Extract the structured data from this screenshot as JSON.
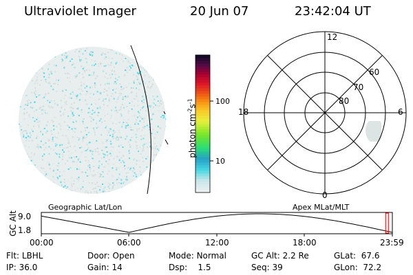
{
  "header": {
    "instrument": "Ultraviolet Imager",
    "date": "20 Jun 07",
    "time": "23:42:04 UT"
  },
  "colorbar": {
    "unit_label": "photon cm",
    "unit_exp1": "-2",
    "unit_s": "s",
    "unit_exp2": "-1",
    "ticks": [
      "100",
      "10"
    ]
  },
  "polar_plot": {
    "mlt_labels": {
      "top": "12",
      "left": "18",
      "right": "6",
      "bottom": "0"
    },
    "lat_labels": [
      "60",
      "70",
      "80"
    ]
  },
  "panel_labels": {
    "left": "Geographic Lat/Lon",
    "right": "Apex  MLat/MLT"
  },
  "altitude_plot": {
    "ylabel": "GC Alt",
    "ymax_label": "9.0",
    "ymin_label": "1.8",
    "xticks": [
      "00:00",
      "06:00",
      "12:00",
      "18:00",
      "23:59"
    ],
    "current_fraction": 0.985
  },
  "status": {
    "row1": [
      {
        "key": "Flt:",
        "value": "LBHL"
      },
      {
        "key": "Door:",
        "value": "Open"
      },
      {
        "key": "Mode:",
        "value": "Normal"
      },
      {
        "key": "GC Alt:",
        "value": "2.2 Re"
      },
      {
        "key": "GLat:",
        "value": "67.6"
      }
    ],
    "row2": [
      {
        "key": "IP:",
        "value": "36.0"
      },
      {
        "key": "Gain:",
        "value": "14"
      },
      {
        "key": "Dsp:",
        "value": "1.5"
      },
      {
        "key": "Seq:",
        "value": "39"
      },
      {
        "key": "GLon:",
        "value": "72.2"
      }
    ]
  },
  "colors": {
    "noise_cyan": "#40d8e8",
    "noise_gray": "#d0d8d8"
  }
}
